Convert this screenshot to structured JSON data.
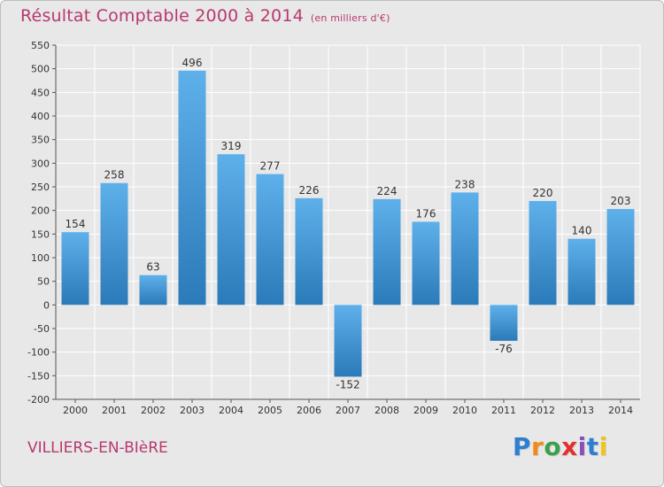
{
  "header": {
    "title": "Résultat Comptable 2000 à 2014",
    "subtitle": "(en milliers d'€)"
  },
  "footer": {
    "commune": "VILLIERS-EN-BIèRE",
    "logo": "Proxiti",
    "logo_colors": [
      "#2e7fd0",
      "#f08a1c",
      "#3aa04a",
      "#e2312d",
      "#8a4fb8",
      "#2e7fd0",
      "#f0c419"
    ]
  },
  "colors": {
    "background": "#e8e8e8",
    "bar_light": "#5eb0ea",
    "bar_dark": "#2b7ab9",
    "text_accent": "#b8386e",
    "grid": "#ffffff"
  },
  "chart_data": {
    "type": "bar",
    "categories": [
      "2000",
      "2001",
      "2002",
      "2003",
      "2004",
      "2005",
      "2006",
      "2007",
      "2008",
      "2009",
      "2010",
      "2011",
      "2012",
      "2013",
      "2014"
    ],
    "values": [
      154,
      258,
      63,
      496,
      319,
      277,
      226,
      -152,
      224,
      176,
      238,
      -76,
      220,
      140,
      203
    ],
    "yticks": [
      550,
      500,
      450,
      400,
      350,
      300,
      250,
      200,
      150,
      100,
      50,
      0,
      -50,
      -100,
      -150,
      -200
    ],
    "ylim": [
      -200,
      550
    ],
    "grid": true
  }
}
